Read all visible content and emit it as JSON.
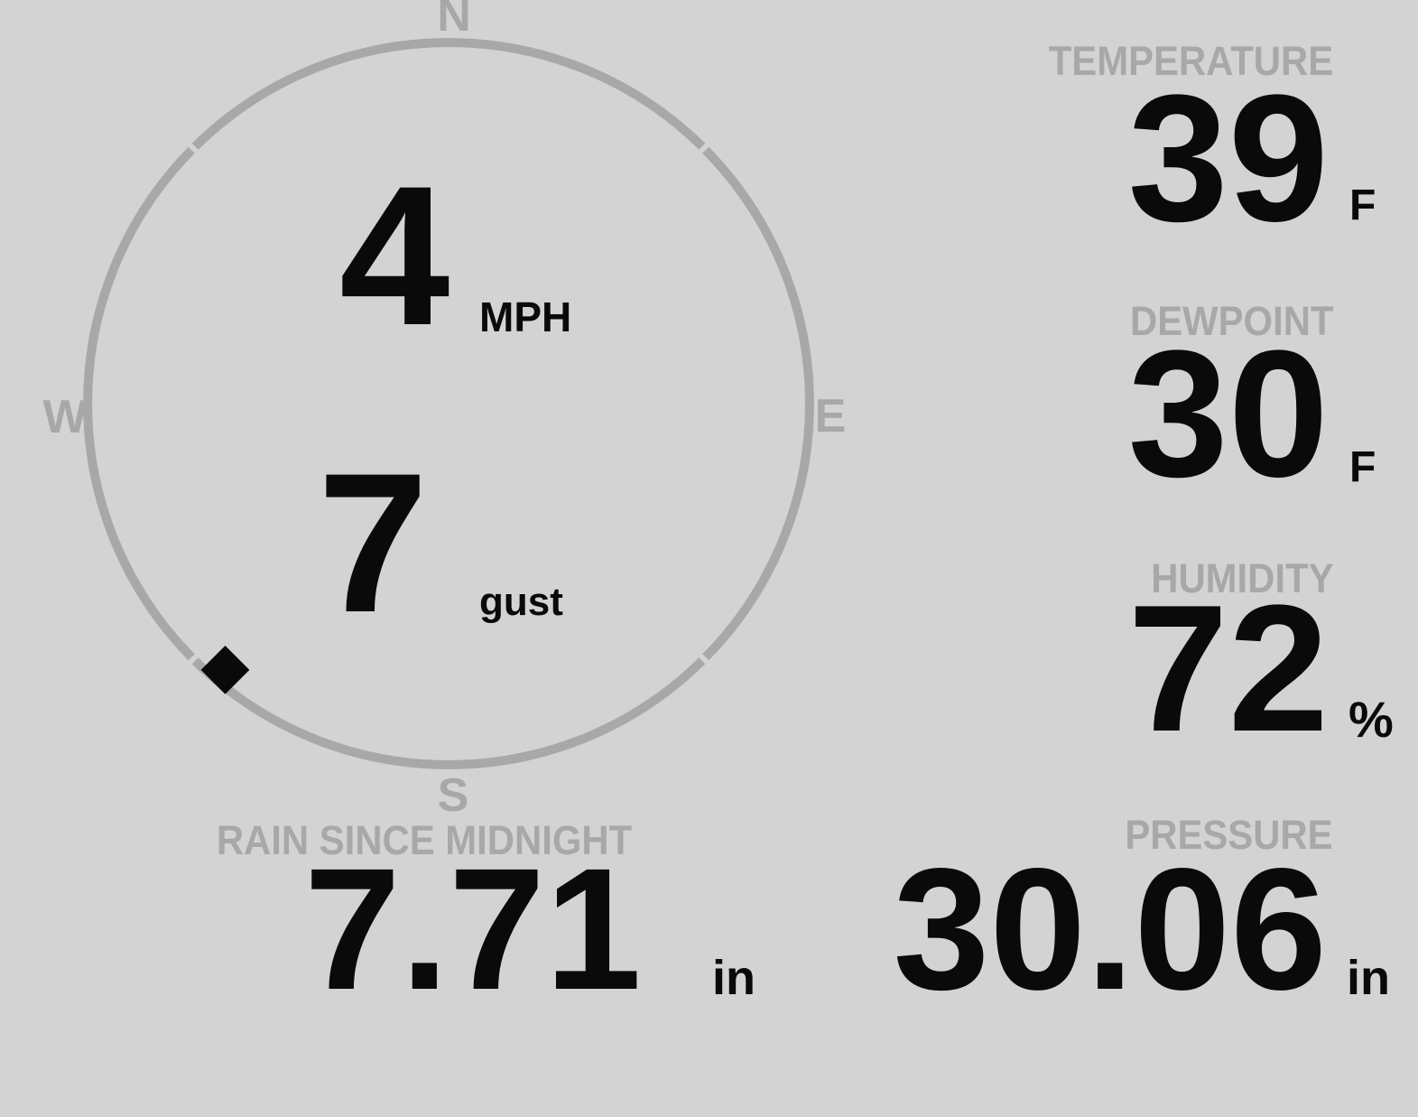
{
  "colors": {
    "background": "#d3d3d3",
    "label_gray": "#a8a8a8",
    "value_black": "#0a0a0a",
    "marker_black": "#000000"
  },
  "wind": {
    "speed_value": "4",
    "speed_unit": "MPH",
    "gust_value": "7",
    "gust_unit": "gust",
    "direction_degrees": 220,
    "compass": {
      "north": "N",
      "south": "S",
      "east": "E",
      "west": "W"
    }
  },
  "metrics": {
    "temperature": {
      "label": "TEMPERATURE",
      "value": "39",
      "unit": "F"
    },
    "dewpoint": {
      "label": "DEWPOINT",
      "value": "30",
      "unit": "F"
    },
    "humidity": {
      "label": "HUMIDITY",
      "value": "72",
      "unit": "%"
    },
    "rain": {
      "label": "RAIN SINCE MIDNIGHT",
      "value": "7.71",
      "unit": "in"
    },
    "pressure": {
      "label": "PRESSURE",
      "value": "30.06",
      "unit": "in"
    }
  }
}
